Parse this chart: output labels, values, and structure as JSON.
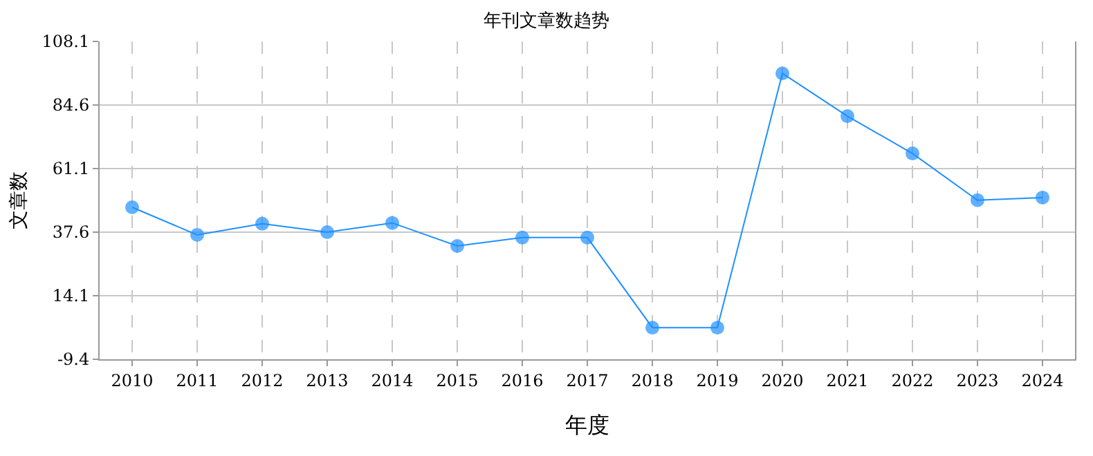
{
  "chart_data": {
    "type": "line",
    "title": "年刊文章数趋势",
    "xlabel": "年度",
    "ylabel": "文章数",
    "categories": [
      "2010",
      "2011",
      "2012",
      "2013",
      "2014",
      "2015",
      "2016",
      "2017",
      "2018",
      "2019",
      "2020",
      "2021",
      "2022",
      "2023",
      "2024"
    ],
    "series": [
      {
        "color": "#1e90ff",
        "values": [
          46.8,
          36.6,
          40.7,
          37.6,
          41,
          32.5,
          35.6,
          35.6,
          2.3,
          2.3,
          96.3,
          80.5,
          66.7,
          49.4,
          50.4
        ]
      }
    ],
    "ylim": [
      -9.4,
      108.1
    ],
    "yticks": [
      -9.4,
      14.1,
      37.6,
      61.1,
      84.6,
      108.1
    ],
    "grid": true,
    "marker": "circle",
    "line_style": "solid",
    "legend": false
  }
}
